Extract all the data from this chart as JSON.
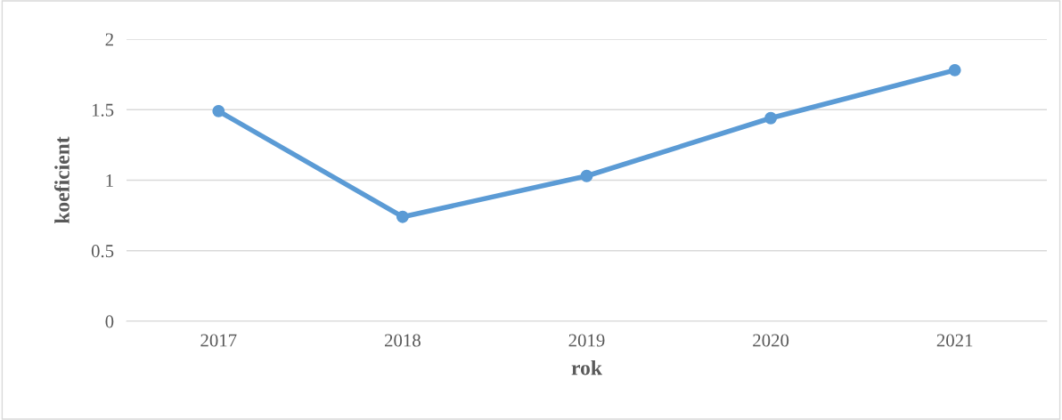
{
  "chart_data": {
    "type": "line",
    "xlabel": "rok",
    "ylabel": "koeficient",
    "categories": [
      "2017",
      "2018",
      "2019",
      "2020",
      "2021"
    ],
    "series": [
      {
        "color": "#5b9bd5",
        "values": [
          1.49,
          0.74,
          1.03,
          1.44,
          1.78
        ]
      }
    ],
    "ylim": [
      0,
      2
    ],
    "yticks": [
      0,
      0.5,
      1,
      1.5,
      2
    ],
    "grid": "y",
    "marker": "circle",
    "line_style": "solid",
    "legend": false
  }
}
